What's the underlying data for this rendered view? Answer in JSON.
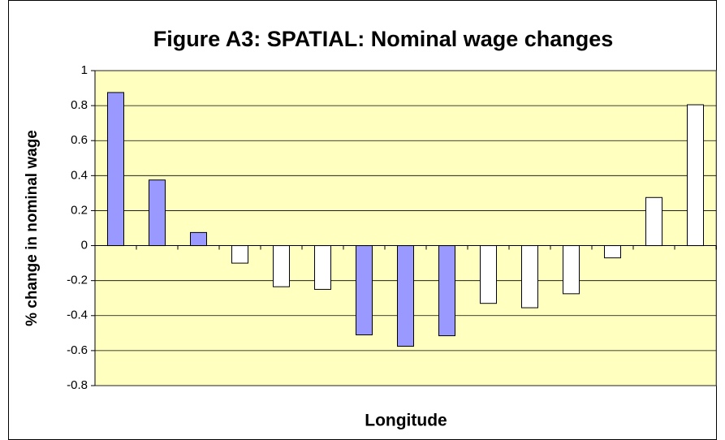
{
  "chart_data": {
    "type": "bar",
    "title": "Figure A3: SPATIAL: Nominal wage changes",
    "x_label": "Longitude",
    "y_label": "% change in nominal wage",
    "categories": [
      null,
      null,
      null,
      null,
      null,
      null,
      null,
      null,
      null,
      null,
      null,
      null,
      null,
      null,
      null
    ],
    "values": [
      0.875,
      0.375,
      0.075,
      -0.1,
      -0.235,
      -0.25,
      -0.51,
      -0.575,
      -0.515,
      -0.33,
      -0.355,
      -0.275,
      -0.07,
      0.275,
      0.805
    ],
    "colors": [
      "#9999ff",
      "#9999ff",
      "#9999ff",
      "#ffffff",
      "#ffffff",
      "#ffffff",
      "#9999ff",
      "#9999ff",
      "#9999ff",
      "#ffffff",
      "#ffffff",
      "#ffffff",
      "#ffffff",
      "#ffffff",
      "#ffffff"
    ],
    "ylim": [
      -0.8,
      1
    ],
    "yticks": [
      -0.8,
      -0.6,
      -0.4,
      -0.2,
      0,
      0.2,
      0.4,
      0.6,
      0.8,
      1
    ],
    "grid": true,
    "plot_background": "#ffffc0"
  }
}
